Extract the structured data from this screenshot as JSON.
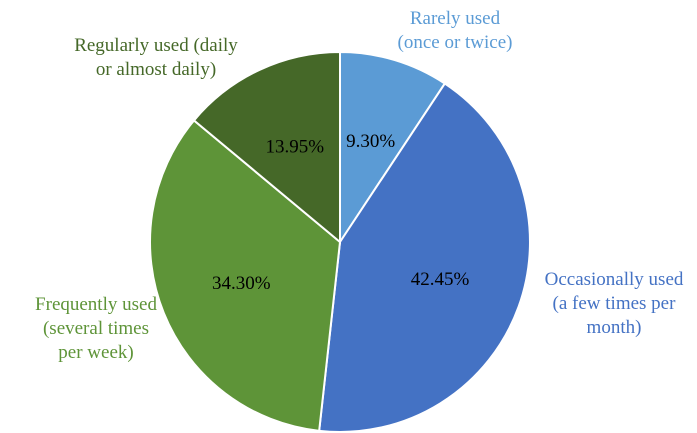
{
  "chart_data": {
    "type": "pie",
    "start_angle_deg": 0,
    "direction": "clockwise",
    "slices": [
      {
        "category": "Rarely used (once or twice)",
        "label_lines": [
          "Rarely used",
          "(once or twice)"
        ],
        "value": 9.3,
        "value_label": "9.30%",
        "color": "#5B9BD5"
      },
      {
        "category": "Occasionally used (a few times per month)",
        "label_lines": [
          "Occasionally used",
          "(a few times per",
          "month)"
        ],
        "value": 42.45,
        "value_label": "42.45%",
        "color": "#4472C4"
      },
      {
        "category": "Frequently used (several times per week)",
        "label_lines": [
          "Frequently used",
          "(several times",
          "per week)"
        ],
        "value": 34.3,
        "value_label": "34.30%",
        "color": "#5E9438"
      },
      {
        "category": "Regularly used (daily or almost daily)",
        "label_lines": [
          "Regularly used (daily",
          "or almost daily)"
        ],
        "value": 13.95,
        "value_label": "13.95%",
        "color": "#456828"
      }
    ]
  }
}
